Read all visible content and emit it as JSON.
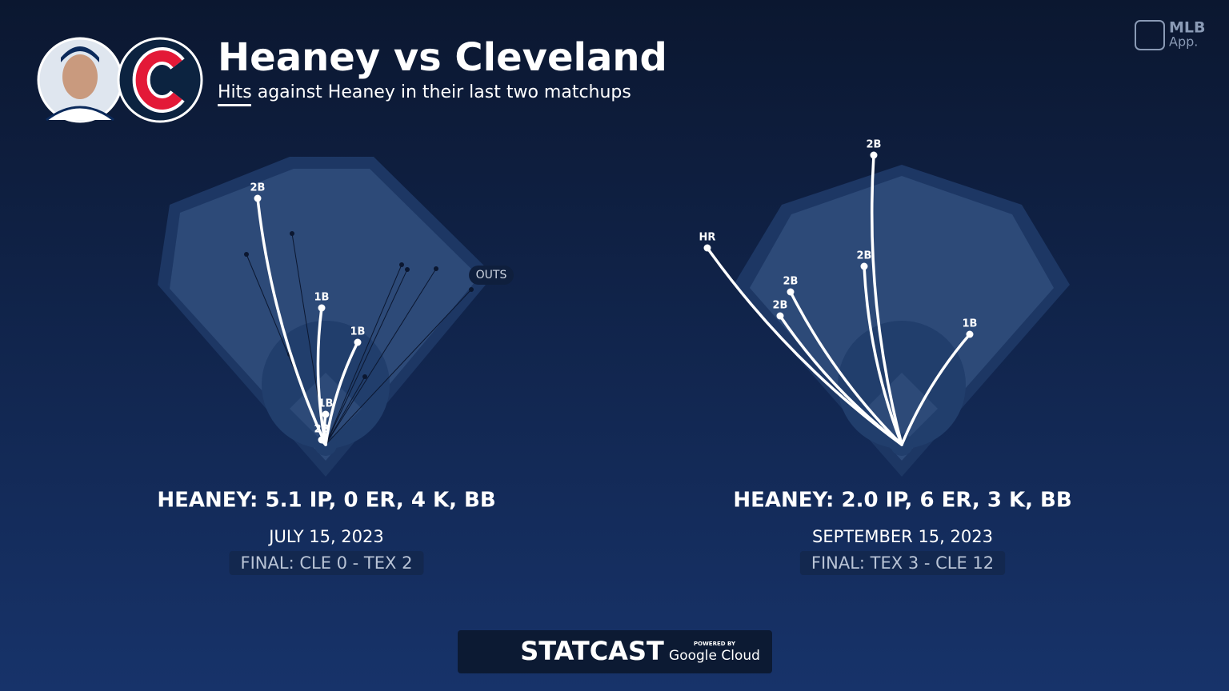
{
  "header": {
    "title": "Heaney vs Cleveland",
    "subtitle": "Hits against Heaney in their last two matchups"
  },
  "brand": {
    "line1": "MLB",
    "line2": "App."
  },
  "games": [
    {
      "stat_line": "HEANEY: 5.1 IP, 0 ER, 4 K, BB",
      "date": "JULY 15, 2023",
      "final": "FINAL: CLE 0 - TEX 2",
      "outs_label": "OUTS",
      "hits": [
        "2B",
        "1B",
        "1B",
        "1B",
        "2B"
      ]
    },
    {
      "stat_line": "HEANEY: 2.0 IP, 6 ER, 3 K, BB",
      "date": "SEPTEMBER 15, 2023",
      "final": "FINAL: TEX 3 - CLE 12",
      "hits": [
        "2B",
        "HR",
        "2B",
        "2B",
        "2B",
        "1B"
      ]
    }
  ],
  "footer": {
    "statcast": "STATCAST",
    "powered_by": "POWERED BY",
    "google_cloud": "Google Cloud"
  }
}
